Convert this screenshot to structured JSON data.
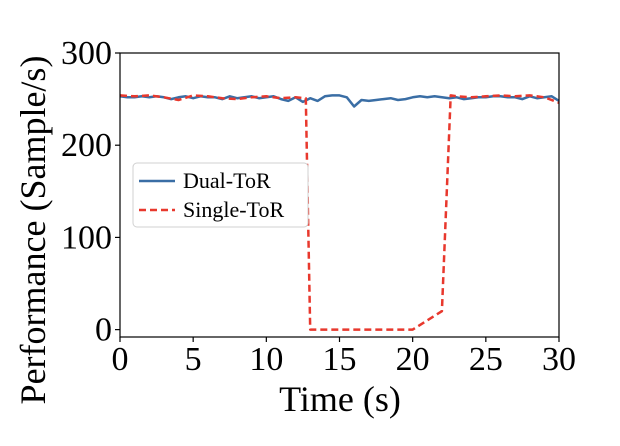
{
  "chart_data": {
    "type": "line",
    "title": "",
    "xlabel": "Time (s)",
    "ylabel": "Performance (Sample/s)",
    "xlim": [
      0,
      30
    ],
    "ylim": [
      -8,
      300
    ],
    "xticks": [
      "0",
      "5",
      "10",
      "15",
      "20",
      "25",
      "30"
    ],
    "xtick_values": [
      0,
      5,
      10,
      15,
      20,
      25,
      30
    ],
    "yticks": [
      "0",
      "100",
      "200",
      "300"
    ],
    "ytick_values": [
      0,
      100,
      200,
      300
    ],
    "grid": false,
    "legend_position": "left",
    "series": [
      {
        "name": "Dual-ToR",
        "color": "#3a6ea5",
        "style": "solid",
        "x": [
          0,
          0.5,
          1,
          1.5,
          2,
          2.5,
          3,
          3.5,
          4,
          4.5,
          5,
          5.5,
          6,
          6.5,
          7,
          7.5,
          8,
          8.5,
          9,
          9.5,
          10,
          10.5,
          11,
          11.5,
          12,
          12.5,
          13,
          13.5,
          14,
          14.5,
          15,
          15.5,
          16,
          16.5,
          17,
          17.5,
          18,
          18.5,
          19,
          19.5,
          20,
          20.5,
          21,
          21.5,
          22,
          22.5,
          23,
          23.5,
          24,
          24.5,
          25,
          25.5,
          26,
          26.5,
          27,
          27.5,
          28,
          28.5,
          29,
          29.5,
          30
        ],
        "y": [
          253,
          252,
          252,
          253,
          252,
          253,
          252,
          250,
          252,
          253,
          251,
          253,
          252,
          252,
          250,
          253,
          251,
          252,
          253,
          251,
          252,
          253,
          250,
          248,
          252,
          247,
          251,
          248,
          253,
          254,
          254,
          252,
          242,
          249,
          248,
          249,
          250,
          251,
          249,
          250,
          252,
          253,
          252,
          253,
          252,
          251,
          252,
          250,
          251,
          252,
          252,
          253,
          253,
          252,
          252,
          250,
          253,
          251,
          252,
          253,
          248
        ]
      },
      {
        "name": "Single-ToR",
        "color": "#e8382d",
        "style": "dashed",
        "x": [
          0,
          1,
          2,
          3,
          4,
          5,
          6,
          7,
          8,
          9,
          10,
          11,
          12,
          12.7,
          13,
          14,
          15,
          16,
          17,
          18,
          19,
          20,
          21,
          22,
          22.6,
          23,
          24,
          25,
          26,
          27,
          28,
          29,
          30
        ],
        "y": [
          254,
          253,
          254,
          252,
          249,
          254,
          253,
          251,
          250,
          252,
          253,
          251,
          252,
          251,
          0,
          0,
          0,
          0,
          0,
          0,
          0,
          0,
          10,
          20,
          254,
          253,
          252,
          253,
          254,
          253,
          254,
          252,
          246
        ]
      }
    ]
  }
}
